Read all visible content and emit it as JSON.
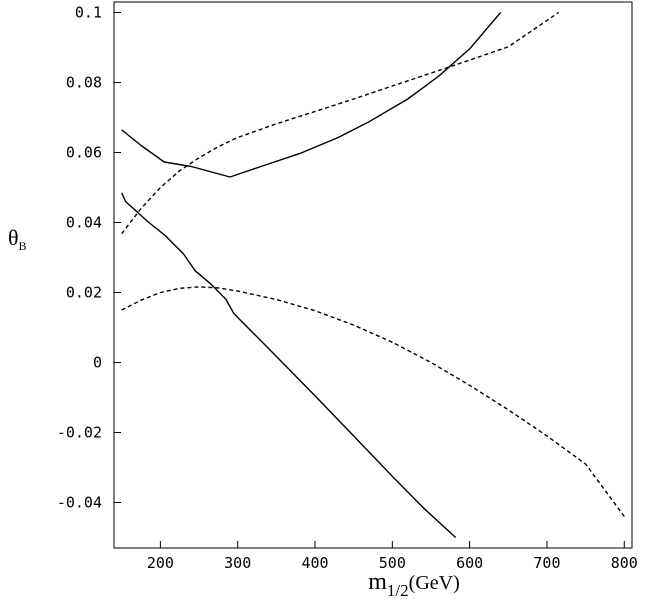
{
  "chart_data": {
    "type": "line",
    "title": "",
    "xlabel": "m",
    "xlabel_sub": "1/2",
    "xlabel_unit": "(GeV)",
    "ylabel": "θ",
    "ylabel_sub": "B",
    "xlim": [
      140,
      810
    ],
    "ylim": [
      -0.053,
      0.103
    ],
    "grid": false,
    "x_ticks": [
      {
        "value": 200,
        "label": "200"
      },
      {
        "value": 300,
        "label": "300"
      },
      {
        "value": 400,
        "label": "400"
      },
      {
        "value": 500,
        "label": "500"
      },
      {
        "value": 600,
        "label": "600"
      },
      {
        "value": 700,
        "label": "700"
      },
      {
        "value": 800,
        "label": "800"
      }
    ],
    "y_ticks": [
      {
        "value": -0.04,
        "label": "-0.04"
      },
      {
        "value": -0.02,
        "label": "-0.02"
      },
      {
        "value": 0,
        "label": "0"
      },
      {
        "value": 0.02,
        "label": "0.02"
      },
      {
        "value": 0.04,
        "label": "0.04"
      },
      {
        "value": 0.06,
        "label": "0.06"
      },
      {
        "value": 0.08,
        "label": "0.08"
      },
      {
        "value": 0.1,
        "label": "0.1"
      }
    ],
    "series": [
      {
        "style": "solid",
        "x": [
          150,
          175,
          205,
          240,
          290,
          330,
          380,
          430,
          470,
          520,
          560,
          600,
          640
        ],
        "y": [
          0.0665,
          0.062,
          0.0573,
          0.056,
          0.053,
          0.056,
          0.0597,
          0.0643,
          0.0688,
          0.0753,
          0.0818,
          0.0896,
          0.1
        ]
      },
      {
        "style": "solid",
        "x": [
          150,
          155,
          165,
          185,
          205,
          230,
          245,
          265,
          285,
          295,
          340,
          400,
          450,
          500,
          540,
          582
        ],
        "y": [
          0.0485,
          0.046,
          0.044,
          0.04,
          0.0365,
          0.031,
          0.0262,
          0.0225,
          0.018,
          0.014,
          0.004,
          -0.0095,
          -0.021,
          -0.0325,
          -0.0415,
          -0.05
        ]
      },
      {
        "style": "dashed",
        "x": [
          150,
          175,
          200,
          225,
          250,
          275,
          300,
          350,
          400,
          450,
          500,
          550,
          600,
          650,
          715
        ],
        "y": [
          0.0368,
          0.044,
          0.05,
          0.0548,
          0.0585,
          0.0617,
          0.0643,
          0.0682,
          0.0717,
          0.0753,
          0.079,
          0.0827,
          0.0864,
          0.0902,
          0.1
        ]
      },
      {
        "style": "dashed",
        "x": [
          150,
          175,
          200,
          225,
          250,
          275,
          300,
          350,
          400,
          450,
          500,
          550,
          600,
          650,
          700,
          750,
          800
        ],
        "y": [
          0.015,
          0.0178,
          0.02,
          0.0212,
          0.0216,
          0.0213,
          0.0204,
          0.018,
          0.0148,
          0.0107,
          0.0058,
          0.0,
          -0.0065,
          -0.0135,
          -0.021,
          -0.029,
          -0.044
        ]
      }
    ]
  }
}
